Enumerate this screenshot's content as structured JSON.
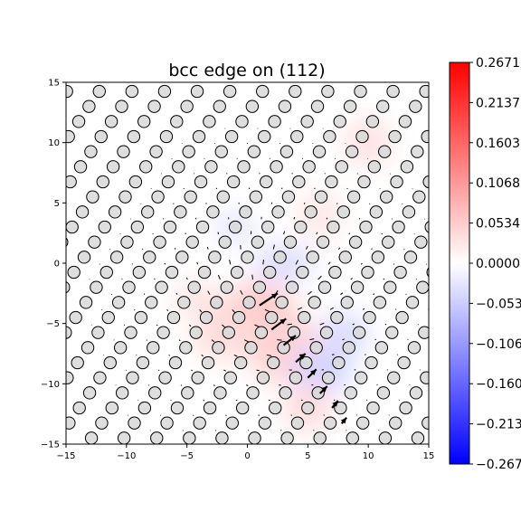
{
  "chart_data": {
    "type": "scatter",
    "title": "bcc edge on (112)",
    "xlabel": "",
    "ylabel": "",
    "xlim": [
      -15,
      15
    ],
    "ylim": [
      -15,
      15
    ],
    "xticks": [
      -15,
      -10,
      -5,
      0,
      5,
      10,
      15
    ],
    "yticks": [
      -15,
      -10,
      -5,
      0,
      5,
      10,
      15
    ],
    "lattice": {
      "a1": [
        2.7,
        0.0
      ],
      "a2": [
        0.85,
        1.25
      ],
      "origin": [
        0.0,
        0.5
      ],
      "atom_radius": 0.5
    },
    "dislocation_core": [
      0.5,
      -2.5
    ],
    "arrow_series": [
      {
        "x": 1.0,
        "y": -3.5,
        "dx": 1.5,
        "dy": 1.0
      },
      {
        "x": 2.0,
        "y": -5.5,
        "dx": 1.2,
        "dy": 0.9
      },
      {
        "x": 3.0,
        "y": -6.8,
        "dx": 1.0,
        "dy": 0.8
      },
      {
        "x": 4.0,
        "y": -8.2,
        "dx": 0.8,
        "dy": 0.7
      },
      {
        "x": 5.0,
        "y": -9.5,
        "dx": 0.7,
        "dy": 0.7
      },
      {
        "x": 6.0,
        "y": -10.8,
        "dx": 0.6,
        "dy": 0.6
      },
      {
        "x": 7.0,
        "y": -12.0,
        "dx": 0.5,
        "dy": 0.6
      },
      {
        "x": 7.8,
        "y": -13.3,
        "dx": 0.4,
        "dy": 0.5
      }
    ],
    "colorbar": {
      "min": -0.2671,
      "max": 0.2671,
      "colormap": [
        "#0000ff",
        "#ffffff",
        "#ff0000"
      ],
      "tick_labels": [
        "0.2671",
        "0.2137",
        "0.1603",
        "0.1068",
        "0.0534",
        "0.0000",
        "−0.0534",
        "−0.1068",
        "−0.1603",
        "−0.2137",
        "−0.2671"
      ],
      "tick_values": [
        0.2671,
        0.2137,
        0.1603,
        0.1068,
        0.0534,
        0.0,
        -0.0534,
        -0.1068,
        -0.1603,
        -0.2137,
        -0.2671
      ]
    }
  }
}
